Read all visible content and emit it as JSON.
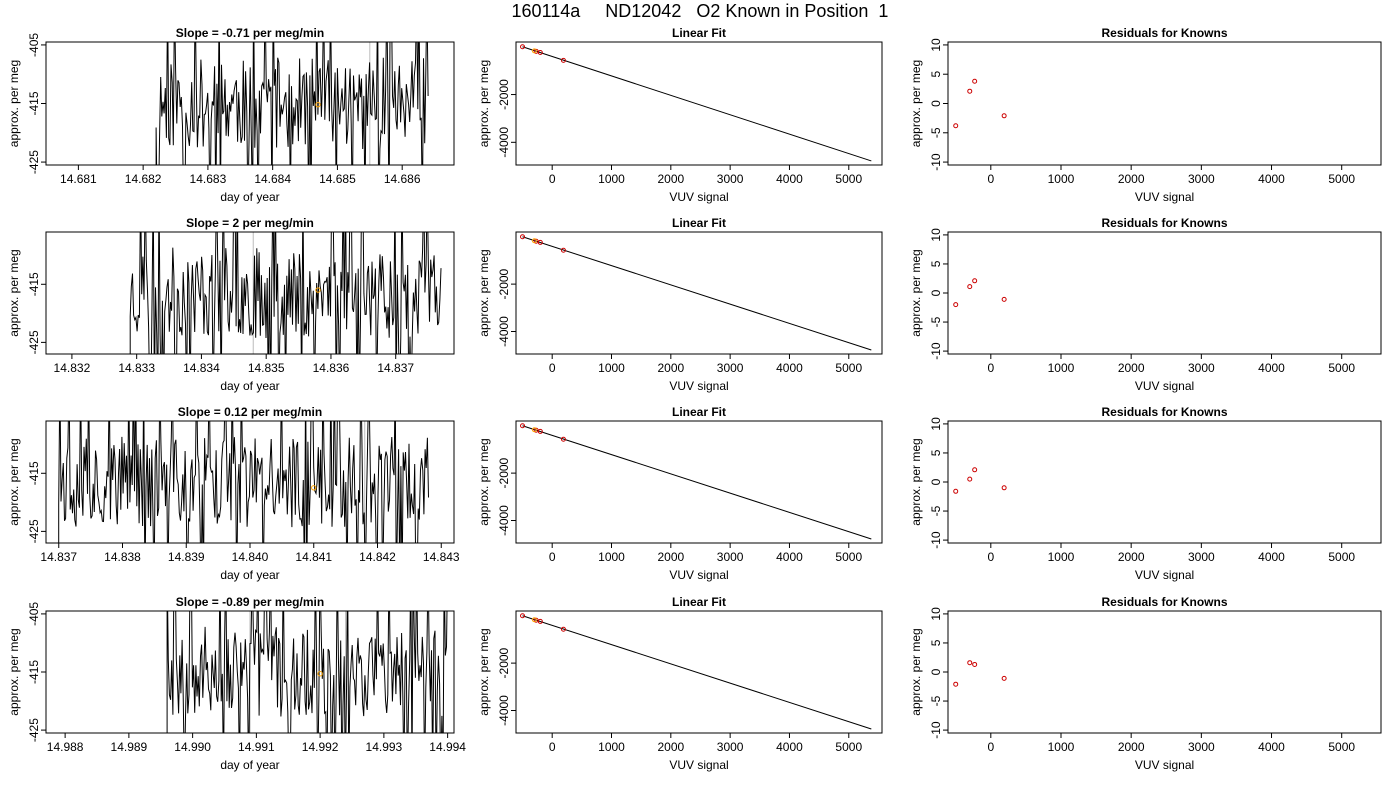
{
  "title": "160114a     ND12042   O2 Known in Position  1",
  "colors": {
    "trace": "#000000",
    "known_point": "#cc0000",
    "highlight": "#ffa500",
    "gray_marker": "#bbbbbb"
  },
  "chart_data": [
    {
      "type": "line",
      "row": 1,
      "title": "Slope =  -0.71  per meg/min",
      "xlabel": "day of year",
      "ylabel": "approx. per meg",
      "xlim": [
        14.6805,
        14.6868
      ],
      "ylim": [
        -425.5,
        -404.5
      ],
      "xticks": [
        14.681,
        14.682,
        14.683,
        14.684,
        14.685,
        14.686
      ],
      "xtick_labels": [
        "14.681",
        "14.682",
        "14.683",
        "14.684",
        "14.685",
        "14.686"
      ],
      "yticks": [
        -405,
        -415,
        -425
      ],
      "ytick_labels": [
        "-405",
        "-415",
        "-425"
      ],
      "trace_x_range": [
        14.6822,
        14.6864
      ],
      "trace_seed": 11,
      "highlight_point": {
        "x": 14.6847,
        "y": -415.2
      },
      "gray_markers_x": [
        14.6837,
        14.6855
      ]
    },
    {
      "type": "scatter",
      "row": 1,
      "title": "Linear Fit",
      "xlabel": "VUV signal",
      "ylabel": "approx. per meg",
      "xlim": [
        -610,
        5560
      ],
      "ylim": [
        -4950,
        200
      ],
      "xticks": [
        0,
        1000,
        2000,
        3000,
        4000,
        5000
      ],
      "xtick_labels": [
        "0",
        "1000",
        "2000",
        "3000",
        "4000",
        "5000"
      ],
      "yticks": [
        -2000,
        -4000
      ],
      "ytick_labels": [
        "-2000",
        "-4000"
      ],
      "fit_line": {
        "x": [
          -500,
          5380
        ],
        "y": [
          0,
          -4780
        ]
      },
      "points": [
        {
          "x": -500,
          "y": 0
        },
        {
          "x": -270,
          "y": -190
        },
        {
          "x": -200,
          "y": -240
        },
        {
          "x": 190,
          "y": -570
        }
      ],
      "highlight_point": {
        "x": -300,
        "y": -170
      }
    },
    {
      "type": "scatter",
      "row": 1,
      "title": "Residuals for Knowns",
      "xlabel": "VUV signal",
      "ylabel": "approx. per meg",
      "xlim": [
        -610,
        5560
      ],
      "ylim": [
        -10.5,
        10.5
      ],
      "xticks": [
        0,
        1000,
        2000,
        3000,
        4000,
        5000
      ],
      "xtick_labels": [
        "0",
        "1000",
        "2000",
        "3000",
        "4000",
        "5000"
      ],
      "yticks": [
        -10,
        -5,
        0,
        5,
        10
      ],
      "ytick_labels": [
        "-10",
        "-5",
        "0",
        "5",
        "10"
      ],
      "points": [
        {
          "x": -500,
          "y": -3.8
        },
        {
          "x": -300,
          "y": 2.1
        },
        {
          "x": -230,
          "y": 3.8
        },
        {
          "x": 190,
          "y": -2.1
        }
      ]
    },
    {
      "type": "line",
      "row": 2,
      "title": "Slope =  2  per meg/min",
      "xlabel": "day of year",
      "ylabel": "approx. per meg",
      "xlim": [
        14.8316,
        14.8379
      ],
      "ylim": [
        -427,
        -406
      ],
      "xticks": [
        14.832,
        14.833,
        14.834,
        14.835,
        14.836,
        14.837
      ],
      "xtick_labels": [
        "14.832",
        "14.833",
        "14.834",
        "14.835",
        "14.836",
        "14.837"
      ],
      "yticks": [
        -415,
        -425
      ],
      "ytick_labels": [
        "-415",
        "-425"
      ],
      "trace_x_range": [
        14.8329,
        14.8377
      ],
      "trace_seed": 23,
      "highlight_point": {
        "x": 14.8358,
        "y": -416.0
      },
      "gray_markers_x": [
        14.8348
      ]
    },
    {
      "type": "scatter",
      "row": 2,
      "title": "Linear Fit",
      "xlabel": "VUV signal",
      "ylabel": "approx. per meg",
      "xlim": [
        -610,
        5560
      ],
      "ylim": [
        -4950,
        200
      ],
      "xticks": [
        0,
        1000,
        2000,
        3000,
        4000,
        5000
      ],
      "xtick_labels": [
        "0",
        "1000",
        "2000",
        "3000",
        "4000",
        "5000"
      ],
      "yticks": [
        -2000,
        -4000
      ],
      "ytick_labels": [
        "-2000",
        "-4000"
      ],
      "fit_line": {
        "x": [
          -500,
          5380
        ],
        "y": [
          0,
          -4780
        ]
      },
      "points": [
        {
          "x": -500,
          "y": 0
        },
        {
          "x": -270,
          "y": -190
        },
        {
          "x": -200,
          "y": -240
        },
        {
          "x": 190,
          "y": -570
        }
      ],
      "highlight_point": {
        "x": -300,
        "y": -170
      }
    },
    {
      "type": "scatter",
      "row": 2,
      "title": "Residuals for Knowns",
      "xlabel": "VUV signal",
      "ylabel": "approx. per meg",
      "xlim": [
        -610,
        5560
      ],
      "ylim": [
        -10.5,
        10.5
      ],
      "xticks": [
        0,
        1000,
        2000,
        3000,
        4000,
        5000
      ],
      "xtick_labels": [
        "0",
        "1000",
        "2000",
        "3000",
        "4000",
        "5000"
      ],
      "yticks": [
        -10,
        -5,
        0,
        5,
        10
      ],
      "ytick_labels": [
        "-10",
        "-5",
        "0",
        "5",
        "10"
      ],
      "points": [
        {
          "x": -500,
          "y": -2.0
        },
        {
          "x": -300,
          "y": 1.1
        },
        {
          "x": -230,
          "y": 2.1
        },
        {
          "x": 190,
          "y": -1.1
        }
      ]
    },
    {
      "type": "line",
      "row": 3,
      "title": "Slope =  0.12  per meg/min",
      "xlabel": "day of year",
      "ylabel": "approx. per meg",
      "xlim": [
        14.8368,
        14.8432
      ],
      "ylim": [
        -427,
        -406
      ],
      "xticks": [
        14.837,
        14.838,
        14.839,
        14.84,
        14.841,
        14.842,
        14.843
      ],
      "xtick_labels": [
        "14.837",
        "14.838",
        "14.839",
        "14.840",
        "14.841",
        "14.842",
        "14.843"
      ],
      "yticks": [
        -415,
        -425
      ],
      "ytick_labels": [
        "-415",
        "-425"
      ],
      "trace_x_range": [
        14.837,
        14.8428
      ],
      "trace_seed": 37,
      "highlight_point": {
        "x": 14.841,
        "y": -417.5
      },
      "gray_markers_x": [
        14.8418
      ]
    },
    {
      "type": "scatter",
      "row": 3,
      "title": "Linear Fit",
      "xlabel": "VUV signal",
      "ylabel": "approx. per meg",
      "xlim": [
        -610,
        5560
      ],
      "ylim": [
        -4950,
        200
      ],
      "xticks": [
        0,
        1000,
        2000,
        3000,
        4000,
        5000
      ],
      "xtick_labels": [
        "0",
        "1000",
        "2000",
        "3000",
        "4000",
        "5000"
      ],
      "yticks": [
        -2000,
        -4000
      ],
      "ytick_labels": [
        "-2000",
        "-4000"
      ],
      "fit_line": {
        "x": [
          -500,
          5380
        ],
        "y": [
          0,
          -4780
        ]
      },
      "points": [
        {
          "x": -500,
          "y": 0
        },
        {
          "x": -270,
          "y": -190
        },
        {
          "x": -200,
          "y": -240
        },
        {
          "x": 190,
          "y": -570
        }
      ],
      "highlight_point": {
        "x": -300,
        "y": -170
      }
    },
    {
      "type": "scatter",
      "row": 3,
      "title": "Residuals for Knowns",
      "xlabel": "VUV signal",
      "ylabel": "approx. per meg",
      "xlim": [
        -610,
        5560
      ],
      "ylim": [
        -10.5,
        10.5
      ],
      "xticks": [
        0,
        1000,
        2000,
        3000,
        4000,
        5000
      ],
      "xtick_labels": [
        "0",
        "1000",
        "2000",
        "3000",
        "4000",
        "5000"
      ],
      "yticks": [
        -10,
        -5,
        0,
        5,
        10
      ],
      "ytick_labels": [
        "-10",
        "-5",
        "0",
        "5",
        "10"
      ],
      "points": [
        {
          "x": -500,
          "y": -1.6
        },
        {
          "x": -300,
          "y": 0.5
        },
        {
          "x": -230,
          "y": 2.1
        },
        {
          "x": 190,
          "y": -1.0
        }
      ]
    },
    {
      "type": "line",
      "row": 4,
      "title": "Slope =  -0.89  per meg/min",
      "xlabel": "day of year",
      "ylabel": "approx. per meg",
      "xlim": [
        14.9877,
        14.9941
      ],
      "ylim": [
        -425.5,
        -404.5
      ],
      "xticks": [
        14.988,
        14.989,
        14.99,
        14.991,
        14.992,
        14.993,
        14.994
      ],
      "xtick_labels": [
        "14.988",
        "14.989",
        "14.990",
        "14.991",
        "14.992",
        "14.993",
        "14.994"
      ],
      "yticks": [
        -405,
        -415,
        -425
      ],
      "ytick_labels": [
        "-405",
        "-415",
        "-425"
      ],
      "trace_x_range": [
        14.9896,
        14.994
      ],
      "trace_seed": 53,
      "highlight_point": {
        "x": 14.992,
        "y": -415.3
      },
      "gray_markers_x": [
        14.9909,
        14.9924
      ]
    },
    {
      "type": "scatter",
      "row": 4,
      "title": "Linear Fit",
      "xlabel": "VUV signal",
      "ylabel": "approx. per meg",
      "xlim": [
        -610,
        5560
      ],
      "ylim": [
        -4950,
        200
      ],
      "xticks": [
        0,
        1000,
        2000,
        3000,
        4000,
        5000
      ],
      "xtick_labels": [
        "0",
        "1000",
        "2000",
        "3000",
        "4000",
        "5000"
      ],
      "yticks": [
        -2000,
        -4000
      ],
      "ytick_labels": [
        "-2000",
        "-4000"
      ],
      "fit_line": {
        "x": [
          -500,
          5380
        ],
        "y": [
          0,
          -4780
        ]
      },
      "points": [
        {
          "x": -500,
          "y": 0
        },
        {
          "x": -270,
          "y": -190
        },
        {
          "x": -200,
          "y": -240
        },
        {
          "x": 190,
          "y": -570
        }
      ],
      "highlight_point": {
        "x": -300,
        "y": -170
      }
    },
    {
      "type": "scatter",
      "row": 4,
      "title": "Residuals for Knowns",
      "xlabel": "VUV signal",
      "ylabel": "approx. per meg",
      "xlim": [
        -610,
        5560
      ],
      "ylim": [
        -10.5,
        10.5
      ],
      "xticks": [
        0,
        1000,
        2000,
        3000,
        4000,
        5000
      ],
      "xtick_labels": [
        "0",
        "1000",
        "2000",
        "3000",
        "4000",
        "5000"
      ],
      "yticks": [
        -10,
        -5,
        0,
        5,
        10
      ],
      "ytick_labels": [
        "-10",
        "-5",
        "0",
        "5",
        "10"
      ],
      "points": [
        {
          "x": -500,
          "y": -2.1
        },
        {
          "x": -300,
          "y": 1.6
        },
        {
          "x": -230,
          "y": 1.3
        },
        {
          "x": 190,
          "y": -1.1
        }
      ]
    }
  ]
}
